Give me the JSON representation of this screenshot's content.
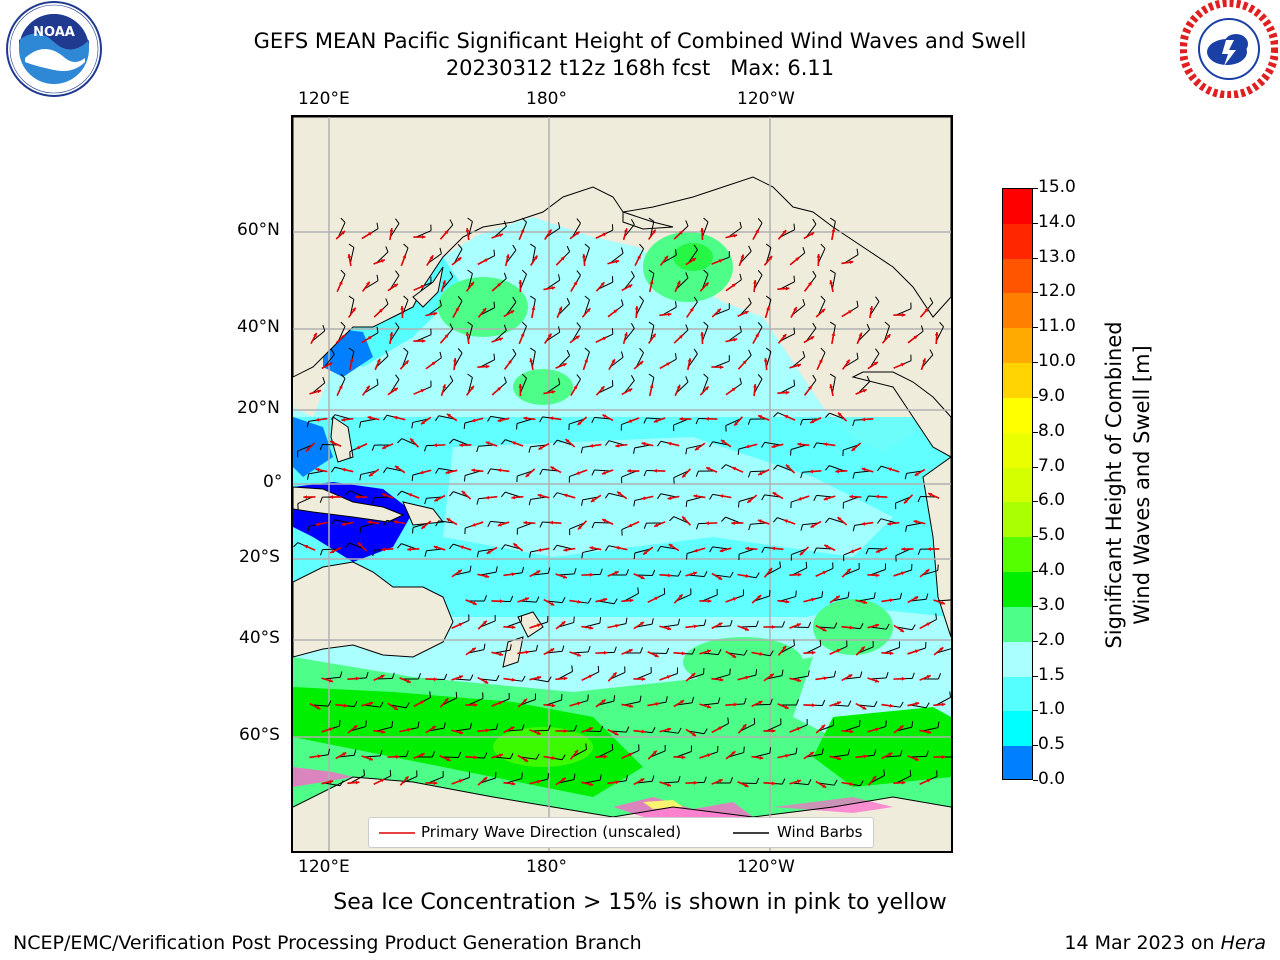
{
  "header": {
    "title_line1": "GEFS MEAN Pacific Significant Height of Combined Wind Waves and Swell",
    "title_line2": "20230312 t12z 168h fcst   Max: 6.11"
  },
  "logos": {
    "left": {
      "name": "NOAA",
      "ring_text": "NATIONAL OCEANIC AND ATMOSPHERIC ADMINISTRATION · U.S. DEPARTMENT OF COMMERCE",
      "colors": [
        "#1f3a8f",
        "#2e88d6",
        "#ffffff"
      ]
    },
    "right": {
      "name": "NATIONAL WEATHER SERVICE",
      "colors": [
        "#e02020",
        "#1a3fa5",
        "#ffffff"
      ]
    }
  },
  "map": {
    "lon_top_labels": [
      "120°E",
      "180°",
      "120°W"
    ],
    "lon_bottom_labels": [
      "120°E",
      "180°",
      "120°W"
    ],
    "lat_labels": [
      "60°N",
      "40°N",
      "20°N",
      "0°",
      "20°S",
      "40°S",
      "60°S"
    ],
    "land_color": "#efecdc",
    "grid_color": "#b0b0b0",
    "legend": {
      "primary_wave": "Primary Wave Direction (unscaled)",
      "wind_barbs": "Wind Barbs",
      "primary_wave_color": "#e00000",
      "wind_barbs_color": "#000000"
    }
  },
  "colorbar": {
    "label_line1": "Significant Height of Combined",
    "label_line2": "Wind Waves and Swell [m]",
    "ticks": [
      "15.0",
      "14.0",
      "13.0",
      "12.0",
      "11.0",
      "10.0",
      "9.0",
      "8.0",
      "7.0",
      "6.0",
      "5.0",
      "4.0",
      "3.0",
      "2.0",
      "1.5",
      "1.0",
      "0.5",
      "0.0"
    ],
    "colors_top_to_bottom": [
      "#ff0000",
      "#ff2600",
      "#ff5500",
      "#ff7f00",
      "#ffaa00",
      "#ffd400",
      "#ffff00",
      "#eaff00",
      "#d4ff00",
      "#aaff00",
      "#55ff00",
      "#00ee00",
      "#4dff88",
      "#aaffff",
      "#55ffff",
      "#00ffff",
      "#0080ff",
      "#0000ff"
    ]
  },
  "notes": {
    "sea_ice": "Sea Ice Concentration > 15% is shown in pink to yellow"
  },
  "footer": {
    "left": "NCEP/EMC/Verification Post Processing Product Generation Branch",
    "right_prefix": "14 Mar 2023 on ",
    "right_host": "Hera"
  }
}
